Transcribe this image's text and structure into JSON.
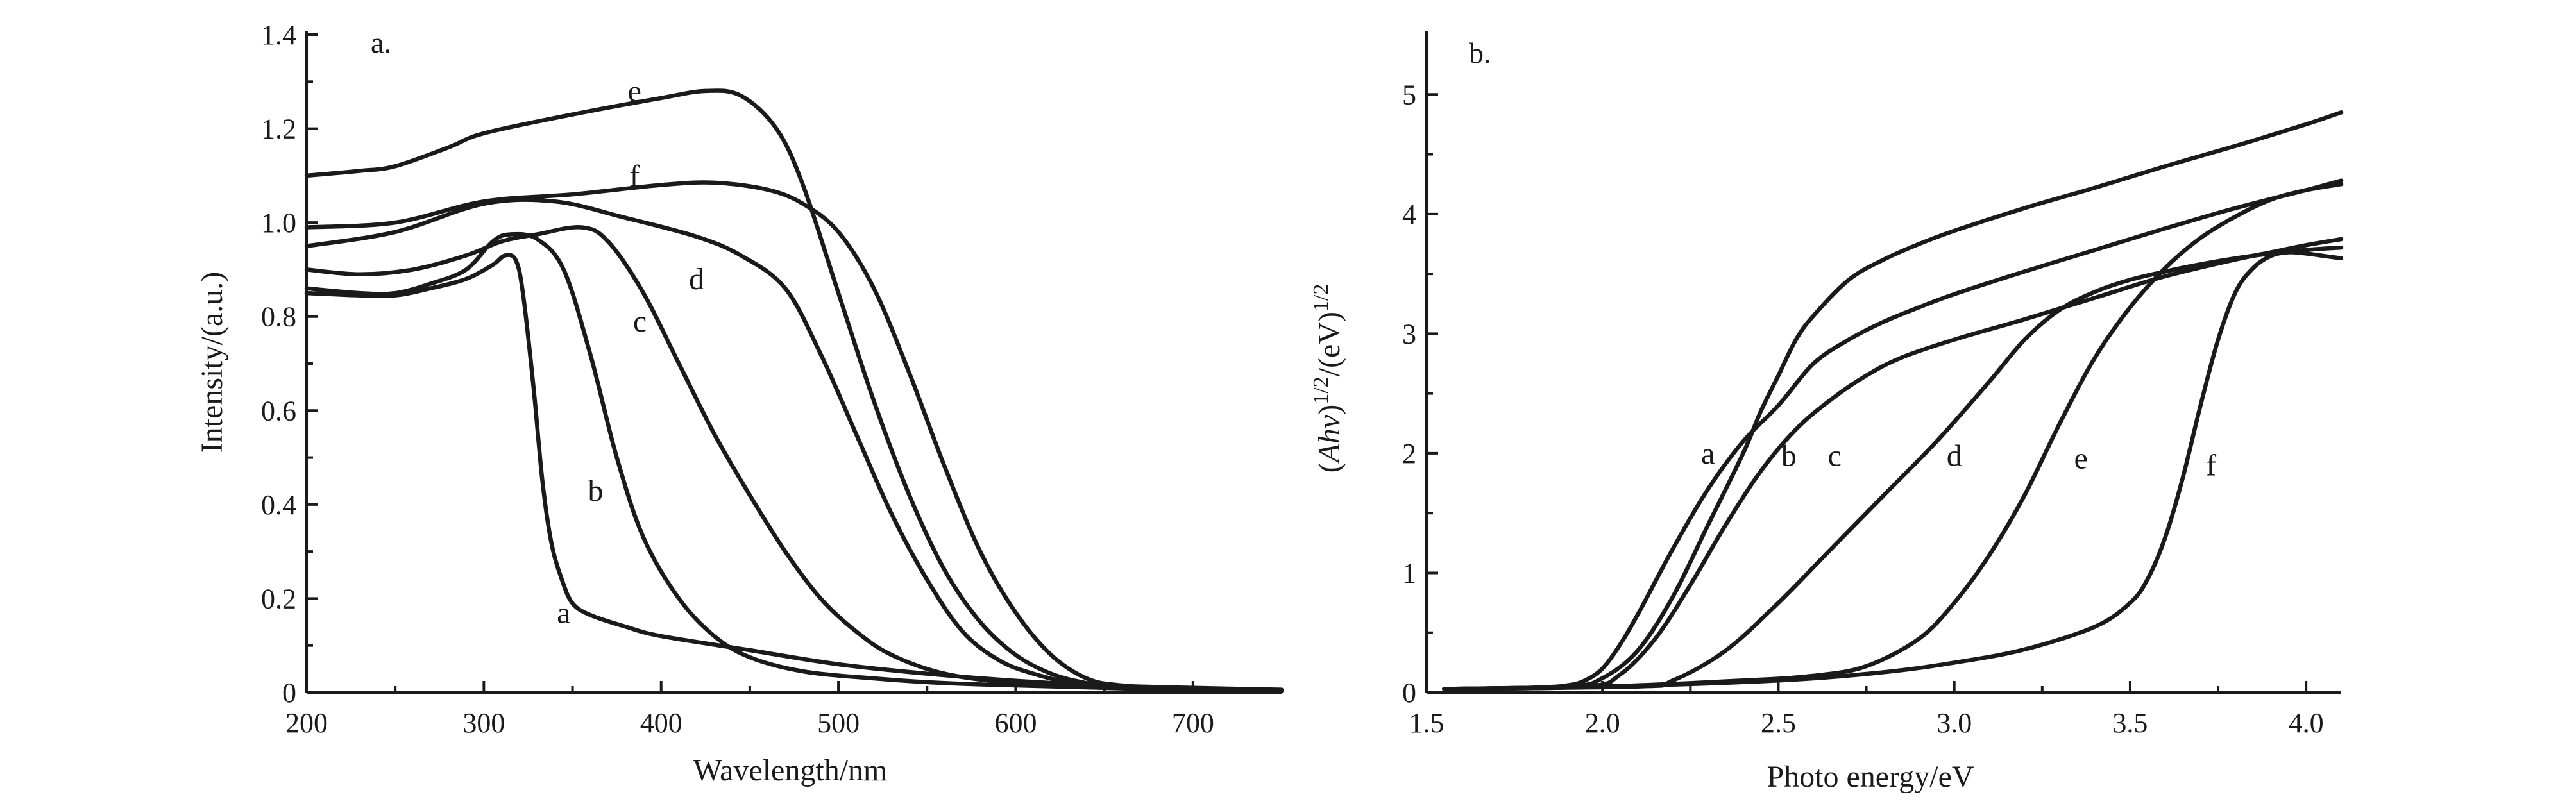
{
  "chart_data": [
    {
      "panel": "a.",
      "type": "line",
      "xlabel": "Wavelength/nm",
      "ylabel": "Intensity/(a.u.)",
      "xlim": [
        200,
        750
      ],
      "ylim": [
        0,
        1.4
      ],
      "xticks": [
        "200",
        "300",
        "400",
        "500",
        "600",
        "700"
      ],
      "yticks": [
        "0",
        "0.2",
        "0.4",
        "0.6",
        "0.8",
        "1.0",
        "1.2",
        "1.4"
      ],
      "grid": false,
      "series": [
        {
          "name": "a",
          "x": [
            200,
            230,
            250,
            270,
            290,
            305,
            312,
            318,
            322,
            328,
            333,
            338,
            344,
            350,
            360,
            380,
            400,
            450,
            500,
            550,
            600,
            650,
            700,
            750
          ],
          "y": [
            0.85,
            0.845,
            0.845,
            0.86,
            0.88,
            0.91,
            0.93,
            0.92,
            0.85,
            0.65,
            0.45,
            0.32,
            0.24,
            0.19,
            0.165,
            0.14,
            0.12,
            0.09,
            0.06,
            0.04,
            0.025,
            0.015,
            0.01,
            0.006
          ]
        },
        {
          "name": "b",
          "x": [
            200,
            230,
            250,
            270,
            290,
            305,
            315,
            330,
            345,
            360,
            375,
            390,
            410,
            430,
            450,
            480,
            520,
            560,
            600,
            650,
            700,
            750
          ],
          "y": [
            0.86,
            0.85,
            0.85,
            0.87,
            0.9,
            0.96,
            0.975,
            0.965,
            0.9,
            0.72,
            0.5,
            0.33,
            0.2,
            0.12,
            0.075,
            0.045,
            0.03,
            0.02,
            0.015,
            0.01,
            0.007,
            0.005
          ]
        },
        {
          "name": "c",
          "x": [
            200,
            230,
            260,
            290,
            310,
            330,
            355,
            370,
            390,
            410,
            430,
            450,
            470,
            490,
            510,
            530,
            560,
            600,
            650,
            700,
            750
          ],
          "y": [
            0.9,
            0.89,
            0.9,
            0.93,
            0.96,
            0.975,
            0.99,
            0.96,
            0.85,
            0.7,
            0.55,
            0.42,
            0.3,
            0.2,
            0.13,
            0.08,
            0.04,
            0.02,
            0.01,
            0.006,
            0.004
          ]
        },
        {
          "name": "d",
          "x": [
            200,
            250,
            300,
            340,
            380,
            420,
            445,
            470,
            490,
            510,
            530,
            550,
            570,
            590,
            610,
            640,
            680,
            750
          ],
          "y": [
            0.95,
            0.98,
            1.04,
            1.045,
            1.01,
            0.97,
            0.93,
            0.86,
            0.72,
            0.55,
            0.38,
            0.24,
            0.13,
            0.07,
            0.04,
            0.015,
            0.007,
            0.004
          ]
        },
        {
          "name": "e",
          "x": [
            200,
            230,
            250,
            280,
            300,
            350,
            400,
            425,
            445,
            465,
            480,
            500,
            520,
            540,
            560,
            580,
            600,
            620,
            640,
            660,
            700,
            750
          ],
          "y": [
            1.1,
            1.11,
            1.12,
            1.16,
            1.19,
            1.23,
            1.265,
            1.28,
            1.27,
            1.2,
            1.08,
            0.85,
            0.62,
            0.42,
            0.26,
            0.15,
            0.08,
            0.04,
            0.02,
            0.01,
            0.006,
            0.004
          ]
        },
        {
          "name": "f",
          "x": [
            200,
            250,
            300,
            350,
            400,
            430,
            460,
            480,
            500,
            520,
            540,
            560,
            580,
            600,
            620,
            640,
            660,
            700,
            750
          ],
          "y": [
            0.99,
            1.0,
            1.045,
            1.06,
            1.08,
            1.085,
            1.07,
            1.04,
            0.98,
            0.86,
            0.68,
            0.48,
            0.3,
            0.17,
            0.08,
            0.03,
            0.015,
            0.007,
            0.004
          ]
        }
      ],
      "annotations": [
        {
          "text": "a",
          "x": 345,
          "y": 0.17
        },
        {
          "text": "b",
          "x": 363,
          "y": 0.43
        },
        {
          "text": "c",
          "x": 388,
          "y": 0.79
        },
        {
          "text": "d",
          "x": 420,
          "y": 0.88
        },
        {
          "text": "e",
          "x": 385,
          "y": 1.28
        },
        {
          "text": "f",
          "x": 385,
          "y": 1.1
        }
      ]
    },
    {
      "panel": "b.",
      "type": "line",
      "xlabel": "Photo energy/eV",
      "ylabel_parts": [
        "(",
        "Ahv",
        ")",
        "1/2",
        "/(eV)",
        "1/2"
      ],
      "xlim": [
        1.5,
        4.1
      ],
      "ylim": [
        0,
        5.5
      ],
      "xticks": [
        "1.5",
        "2.0",
        "2.5",
        "3.0",
        "3.5",
        "4.0"
      ],
      "yticks": [
        "0",
        "1",
        "2",
        "3",
        "4",
        "5"
      ],
      "grid": false,
      "series": [
        {
          "name": "a",
          "x": [
            1.55,
            1.8,
            1.9,
            1.95,
            2.0,
            2.05,
            2.1,
            2.2,
            2.3,
            2.4,
            2.5,
            2.6,
            2.7,
            2.8,
            2.9,
            3.0,
            3.2,
            3.4,
            3.6,
            3.8,
            4.0,
            4.1
          ],
          "y": [
            0.03,
            0.04,
            0.06,
            0.1,
            0.2,
            0.4,
            0.65,
            1.2,
            1.7,
            2.1,
            2.4,
            2.75,
            2.95,
            3.1,
            3.22,
            3.33,
            3.52,
            3.7,
            3.88,
            4.05,
            4.2,
            4.28
          ]
        },
        {
          "name": "b",
          "x": [
            1.55,
            1.9,
            2.0,
            2.1,
            2.2,
            2.3,
            2.4,
            2.45,
            2.5,
            2.55,
            2.6,
            2.7,
            2.8,
            2.9,
            3.0,
            3.2,
            3.4,
            3.6,
            3.8,
            4.0,
            4.1
          ],
          "y": [
            0.03,
            0.05,
            0.12,
            0.35,
            0.8,
            1.4,
            2.0,
            2.35,
            2.65,
            2.95,
            3.15,
            3.45,
            3.62,
            3.75,
            3.86,
            4.05,
            4.22,
            4.4,
            4.57,
            4.75,
            4.85
          ]
        },
        {
          "name": "c",
          "x": [
            1.55,
            1.95,
            2.05,
            2.15,
            2.25,
            2.35,
            2.45,
            2.55,
            2.65,
            2.75,
            2.85,
            3.0,
            3.2,
            3.4,
            3.6,
            3.8,
            3.9,
            4.0,
            4.1
          ],
          "y": [
            0.03,
            0.05,
            0.15,
            0.45,
            0.9,
            1.4,
            1.85,
            2.2,
            2.45,
            2.65,
            2.8,
            2.95,
            3.12,
            3.3,
            3.48,
            3.62,
            3.68,
            3.74,
            3.79
          ]
        },
        {
          "name": "d",
          "x": [
            1.55,
            2.1,
            2.2,
            2.35,
            2.5,
            2.65,
            2.8,
            2.95,
            3.1,
            3.2,
            3.3,
            3.4,
            3.5,
            3.6,
            3.7,
            3.8,
            3.9,
            4.0,
            4.1
          ],
          "y": [
            0.03,
            0.05,
            0.1,
            0.35,
            0.75,
            1.2,
            1.65,
            2.1,
            2.6,
            2.95,
            3.2,
            3.35,
            3.45,
            3.52,
            3.58,
            3.63,
            3.67,
            3.7,
            3.72
          ]
        },
        {
          "name": "e",
          "x": [
            1.55,
            2.0,
            2.4,
            2.6,
            2.75,
            2.9,
            3.0,
            3.1,
            3.2,
            3.3,
            3.4,
            3.5,
            3.6,
            3.7,
            3.8,
            3.9,
            4.0,
            4.1
          ],
          "y": [
            0.03,
            0.05,
            0.1,
            0.14,
            0.22,
            0.45,
            0.75,
            1.15,
            1.65,
            2.25,
            2.8,
            3.22,
            3.55,
            3.8,
            3.98,
            4.12,
            4.2,
            4.25
          ]
        },
        {
          "name": "f",
          "x": [
            1.55,
            2.0,
            2.5,
            2.8,
            3.0,
            3.2,
            3.4,
            3.5,
            3.55,
            3.6,
            3.65,
            3.7,
            3.75,
            3.8,
            3.85,
            3.9,
            3.95,
            4.0,
            4.05,
            4.1
          ],
          "y": [
            0.03,
            0.05,
            0.1,
            0.17,
            0.25,
            0.36,
            0.55,
            0.75,
            0.95,
            1.3,
            1.8,
            2.4,
            2.95,
            3.35,
            3.55,
            3.65,
            3.68,
            3.67,
            3.65,
            3.63
          ]
        }
      ],
      "annotations": [
        {
          "text": "a",
          "x": 2.3,
          "y": 2.0
        },
        {
          "text": "b",
          "x": 2.53,
          "y": 1.98
        },
        {
          "text": "c",
          "x": 2.66,
          "y": 1.98
        },
        {
          "text": "d",
          "x": 3.0,
          "y": 1.98
        },
        {
          "text": "e",
          "x": 3.36,
          "y": 1.96
        },
        {
          "text": "f",
          "x": 3.73,
          "y": 1.9
        }
      ]
    }
  ]
}
